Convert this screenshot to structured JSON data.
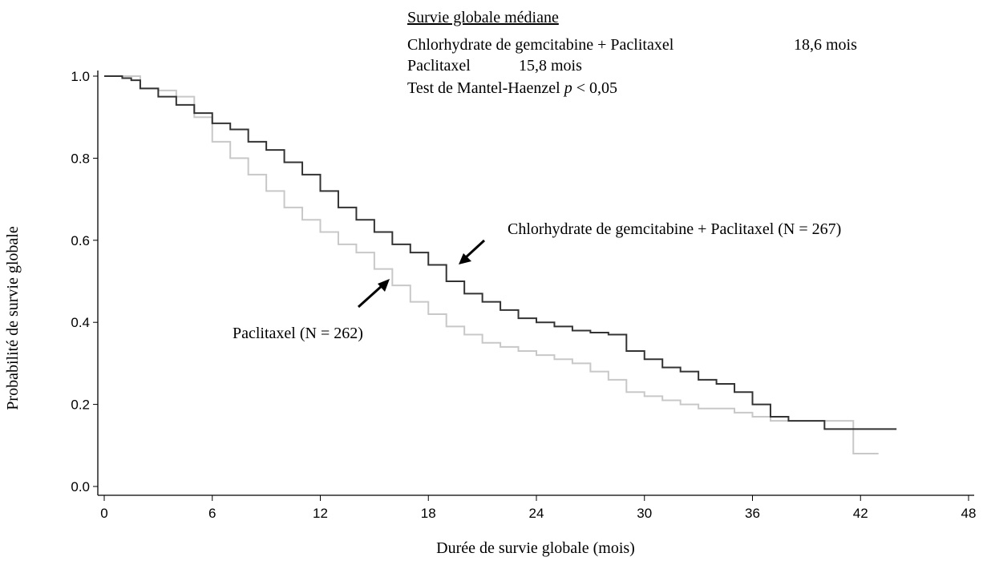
{
  "chart_data": {
    "type": "line",
    "step": true,
    "header": {
      "title": "Survie globale médiane",
      "rows": [
        [
          "Chlorhydrate de gemcitabine + Paclitaxel",
          "18,6 mois"
        ],
        [
          "Paclitaxel",
          "15,8 mois"
        ]
      ],
      "test": "Test de Mantel-Haenzel",
      "stat": "p",
      "result": "< 0,05"
    },
    "xlabel": "Durée de survie globale (mois)",
    "ylabel": "Probabilité de survie globale",
    "xlim": [
      0,
      48
    ],
    "xticks": [
      0,
      6,
      12,
      18,
      24,
      30,
      36,
      42,
      48
    ],
    "ylim": [
      0,
      1
    ],
    "yticks": [
      {
        "value": 0,
        "label": "0.0"
      },
      0.2,
      0.4,
      0.6,
      0.8,
      {
        "value": 1,
        "label": "1.0"
      }
    ],
    "series": [
      {
        "name": "Chlorhydrate de gemcitabine + Paclitaxel (N = 267)",
        "color": "#333333",
        "x": [
          0,
          1,
          1.5,
          2,
          3,
          4,
          5,
          6,
          7,
          8,
          9,
          10,
          11,
          12,
          13,
          14,
          15,
          16,
          17,
          18,
          19,
          20,
          21,
          22,
          23,
          24,
          25,
          26,
          27,
          28,
          29,
          30,
          31,
          32,
          33,
          34,
          35,
          36,
          37,
          38,
          40,
          44
        ],
        "values": [
          1.0,
          0.995,
          0.99,
          0.97,
          0.95,
          0.93,
          0.91,
          0.885,
          0.87,
          0.84,
          0.82,
          0.79,
          0.76,
          0.72,
          0.68,
          0.65,
          0.62,
          0.59,
          0.57,
          0.54,
          0.5,
          0.47,
          0.45,
          0.43,
          0.41,
          0.4,
          0.39,
          0.38,
          0.375,
          0.37,
          0.33,
          0.31,
          0.29,
          0.28,
          0.26,
          0.25,
          0.23,
          0.2,
          0.17,
          0.16,
          0.14,
          0.14
        ]
      },
      {
        "name": "Paclitaxel (N = 262)",
        "color": "#c8c8c8",
        "x": [
          0,
          2,
          3,
          4,
          5,
          6,
          7,
          8,
          9,
          10,
          11,
          12,
          13,
          14,
          15,
          16,
          17,
          18,
          19,
          20,
          21,
          22,
          23,
          24,
          25,
          26,
          27,
          28,
          29,
          30,
          31,
          32,
          33,
          35,
          36,
          37,
          41.6,
          43
        ],
        "values": [
          1.0,
          0.97,
          0.965,
          0.95,
          0.9,
          0.84,
          0.8,
          0.76,
          0.72,
          0.68,
          0.65,
          0.62,
          0.59,
          0.57,
          0.53,
          0.49,
          0.45,
          0.42,
          0.39,
          0.37,
          0.35,
          0.34,
          0.33,
          0.32,
          0.31,
          0.3,
          0.28,
          0.26,
          0.23,
          0.22,
          0.21,
          0.2,
          0.19,
          0.18,
          0.17,
          0.16,
          0.08,
          0.08
        ]
      }
    ]
  }
}
